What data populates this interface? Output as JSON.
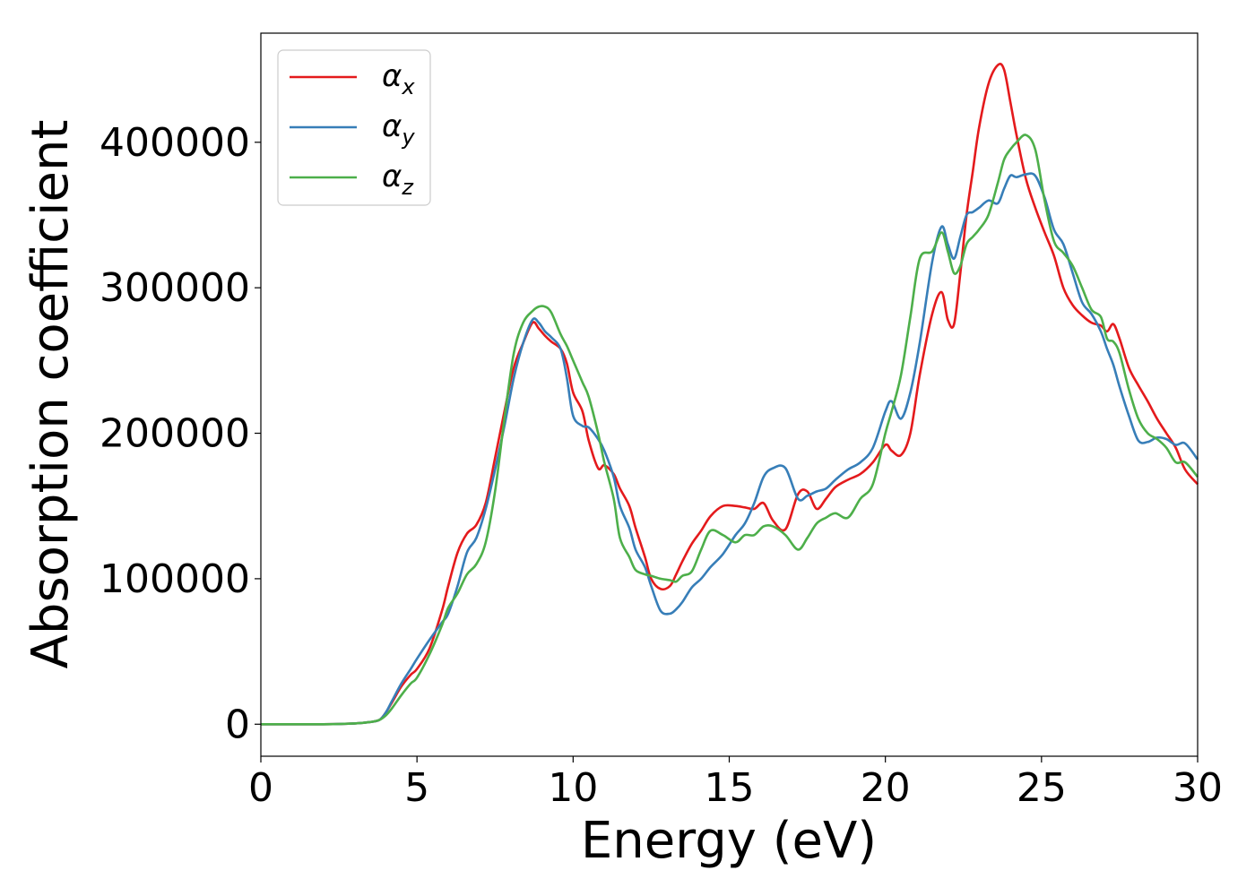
{
  "chart_data": {
    "type": "line",
    "xlabel": "Energy (eV)",
    "ylabel": "Absorption coefficient",
    "xlim": [
      0,
      30
    ],
    "ylim": [
      -22000,
      475000
    ],
    "xticks": [
      0,
      5,
      10,
      15,
      20,
      25,
      30
    ],
    "xtick_labels": [
      "0",
      "5",
      "10",
      "15",
      "20",
      "25",
      "30"
    ],
    "yticks": [
      0,
      100000,
      200000,
      300000,
      400000
    ],
    "ytick_labels": [
      "0",
      "100000",
      "200000",
      "300000",
      "400000"
    ],
    "grid": false,
    "legend_position": "top-left",
    "series": [
      {
        "name": "α",
        "subscript": "x",
        "color": "#e41a1c",
        "x": [
          0,
          2,
          3,
          3.5,
          3.8,
          4,
          4.2,
          4.5,
          4.8,
          5,
          5.4,
          5.8,
          6,
          6.3,
          6.6,
          6.9,
          7.2,
          7.5,
          7.8,
          8.1,
          8.4,
          8.7,
          8.9,
          9.1,
          9.3,
          9.6,
          9.8,
          10,
          10.3,
          10.5,
          10.8,
          11,
          11.3,
          11.5,
          11.8,
          12,
          12.3,
          12.5,
          12.8,
          13.1,
          13.3,
          13.5,
          13.8,
          14.1,
          14.4,
          14.8,
          15.2,
          15.5,
          15.8,
          16.1,
          16.4,
          16.8,
          17.2,
          17.5,
          17.8,
          18.1,
          18.4,
          18.8,
          19.2,
          19.6,
          20,
          20.2,
          20.5,
          20.8,
          21.1,
          21.5,
          21.8,
          22,
          22.2,
          22.4,
          22.6,
          22.8,
          23,
          23.3,
          23.6,
          23.8,
          24,
          24.2,
          24.5,
          24.8,
          25.1,
          25.4,
          25.7,
          26,
          26.3,
          26.6,
          26.9,
          27.1,
          27.3,
          27.5,
          27.8,
          28.1,
          28.4,
          28.7,
          29,
          29.3,
          29.6,
          30
        ],
        "y": [
          0,
          0,
          500,
          1500,
          3000,
          8000,
          15000,
          26000,
          34000,
          38000,
          52000,
          78000,
          95000,
          118000,
          131000,
          137000,
          152000,
          183000,
          215000,
          245000,
          262000,
          276000,
          272000,
          267000,
          263000,
          258000,
          248000,
          228000,
          215000,
          195000,
          176000,
          178000,
          172000,
          162000,
          150000,
          135000,
          115000,
          100000,
          93000,
          95000,
          103000,
          112000,
          124000,
          133000,
          143000,
          150000,
          150000,
          149000,
          148000,
          152000,
          140000,
          134000,
          158000,
          160000,
          148000,
          155000,
          163000,
          168000,
          172000,
          180000,
          192000,
          188000,
          185000,
          200000,
          240000,
          282000,
          297000,
          278000,
          275000,
          310000,
          350000,
          380000,
          410000,
          440000,
          453000,
          450000,
          428000,
          405000,
          375000,
          355000,
          338000,
          322000,
          300000,
          288000,
          281000,
          276000,
          274000,
          270000,
          275000,
          265000,
          245000,
          233000,
          222000,
          210000,
          200000,
          190000,
          175000,
          165000
        ]
      },
      {
        "name": "α",
        "subscript": "y",
        "color": "#377eb8",
        "x": [
          0,
          2,
          3,
          3.5,
          3.8,
          4,
          4.2,
          4.5,
          4.8,
          5,
          5.4,
          5.8,
          6,
          6.3,
          6.6,
          6.9,
          7.2,
          7.5,
          7.8,
          8.1,
          8.4,
          8.7,
          8.9,
          9.1,
          9.3,
          9.6,
          9.8,
          10,
          10.3,
          10.5,
          10.8,
          11,
          11.3,
          11.5,
          11.8,
          12,
          12.3,
          12.5,
          12.8,
          13.1,
          13.3,
          13.5,
          13.8,
          14.1,
          14.4,
          14.8,
          15.2,
          15.5,
          15.8,
          16.1,
          16.4,
          16.8,
          17.2,
          17.5,
          17.8,
          18.1,
          18.4,
          18.8,
          19.2,
          19.6,
          20,
          20.2,
          20.5,
          20.8,
          21.1,
          21.5,
          21.8,
          22,
          22.2,
          22.4,
          22.6,
          22.8,
          23,
          23.3,
          23.6,
          23.8,
          24,
          24.2,
          24.5,
          24.8,
          25.1,
          25.4,
          25.7,
          26,
          26.3,
          26.6,
          26.9,
          27.1,
          27.3,
          27.5,
          27.8,
          28.1,
          28.4,
          28.7,
          29,
          29.3,
          29.6,
          30
        ],
        "y": [
          0,
          0,
          500,
          1500,
          3000,
          8000,
          16000,
          28000,
          38000,
          45000,
          58000,
          70000,
          76000,
          95000,
          118000,
          128000,
          148000,
          175000,
          205000,
          238000,
          262000,
          278000,
          276000,
          270000,
          266000,
          258000,
          238000,
          212000,
          205000,
          204000,
          196000,
          188000,
          170000,
          150000,
          135000,
          120000,
          108000,
          95000,
          78000,
          76000,
          79000,
          84000,
          94000,
          100000,
          108000,
          117000,
          130000,
          138000,
          152000,
          170000,
          176000,
          176000,
          155000,
          157000,
          160000,
          162000,
          168000,
          175000,
          180000,
          190000,
          215000,
          222000,
          210000,
          228000,
          262000,
          318000,
          342000,
          330000,
          320000,
          335000,
          350000,
          352000,
          355000,
          360000,
          358000,
          368000,
          377000,
          376000,
          378000,
          377000,
          362000,
          340000,
          330000,
          310000,
          290000,
          282000,
          270000,
          258000,
          247000,
          232000,
          212000,
          195000,
          194000,
          197000,
          196000,
          192000,
          193000,
          182000
        ]
      },
      {
        "name": "α",
        "subscript": "z",
        "color": "#4daf4a",
        "x": [
          0,
          2,
          3,
          3.5,
          3.8,
          4,
          4.2,
          4.5,
          4.8,
          5,
          5.4,
          5.8,
          6,
          6.3,
          6.6,
          6.9,
          7.2,
          7.5,
          7.8,
          8.1,
          8.4,
          8.7,
          8.9,
          9.1,
          9.3,
          9.6,
          9.8,
          10,
          10.3,
          10.5,
          10.8,
          11,
          11.3,
          11.5,
          11.8,
          12,
          12.3,
          12.5,
          12.8,
          13.1,
          13.3,
          13.5,
          13.8,
          14.1,
          14.4,
          14.8,
          15.2,
          15.5,
          15.8,
          16.1,
          16.4,
          16.8,
          17.2,
          17.5,
          17.8,
          18.1,
          18.4,
          18.8,
          19.2,
          19.6,
          20,
          20.2,
          20.5,
          20.8,
          21.1,
          21.5,
          21.8,
          22,
          22.2,
          22.4,
          22.6,
          22.8,
          23,
          23.3,
          23.6,
          23.8,
          24,
          24.2,
          24.5,
          24.8,
          25.1,
          25.4,
          25.7,
          26,
          26.3,
          26.6,
          26.9,
          27.1,
          27.3,
          27.5,
          27.8,
          28.1,
          28.4,
          28.7,
          29,
          29.3,
          29.6,
          30
        ],
        "y": [
          0,
          0,
          500,
          1500,
          3000,
          6000,
          11000,
          20000,
          28000,
          32000,
          48000,
          68000,
          80000,
          90000,
          103000,
          110000,
          125000,
          160000,
          210000,
          255000,
          276000,
          284000,
          287000,
          287000,
          283000,
          268000,
          260000,
          250000,
          235000,
          225000,
          200000,
          180000,
          155000,
          128000,
          115000,
          106000,
          103000,
          102000,
          100000,
          99000,
          98000,
          102000,
          105000,
          120000,
          133000,
          130000,
          125000,
          130000,
          130000,
          136000,
          136000,
          130000,
          120000,
          128000,
          138000,
          142000,
          145000,
          142000,
          155000,
          165000,
          200000,
          215000,
          240000,
          280000,
          320000,
          325000,
          338000,
          325000,
          310000,
          315000,
          330000,
          335000,
          340000,
          350000,
          372000,
          388000,
          395000,
          400000,
          405000,
          395000,
          360000,
          332000,
          324000,
          315000,
          300000,
          285000,
          280000,
          265000,
          263000,
          255000,
          230000,
          210000,
          200000,
          196000,
          190000,
          180000,
          180000,
          170000
        ]
      }
    ]
  }
}
